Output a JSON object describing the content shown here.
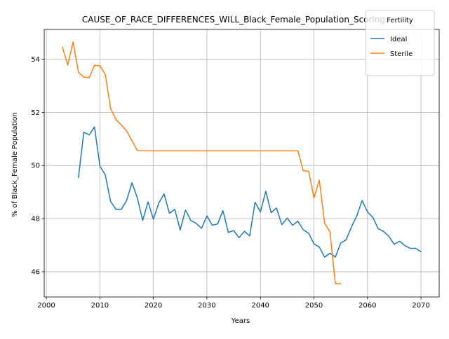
{
  "chart_data": {
    "type": "line",
    "title": "CAUSE_OF_RACE_DIFFERENCES_WILL_Black_Female_Population_Scoring:",
    "xlabel": "Years",
    "ylabel": "% of Black_Female Population",
    "xlim": [
      1999.6,
      2073.4
    ],
    "ylim": [
      45.05,
      55.12
    ],
    "xticks": [
      2000,
      2010,
      2020,
      2030,
      2040,
      2050,
      2060,
      2070
    ],
    "yticks": [
      46,
      48,
      50,
      52,
      54
    ],
    "grid": true,
    "legend": {
      "title": "Fertility",
      "position": "top-right"
    },
    "series": [
      {
        "name": "Ideal",
        "color": "#1f77b4",
        "points": [
          [
            2006,
            49.55
          ],
          [
            2007,
            51.25
          ],
          [
            2008,
            51.15
          ],
          [
            2009,
            51.45
          ],
          [
            2010,
            49.98
          ],
          [
            2011,
            49.65
          ],
          [
            2012,
            48.65
          ],
          [
            2013,
            48.35
          ],
          [
            2014,
            48.35
          ],
          [
            2015,
            48.68
          ],
          [
            2016,
            49.35
          ],
          [
            2017,
            48.78
          ],
          [
            2018,
            47.93
          ],
          [
            2019,
            48.63
          ],
          [
            2020,
            47.98
          ],
          [
            2021,
            48.58
          ],
          [
            2022,
            48.93
          ],
          [
            2023,
            48.2
          ],
          [
            2024,
            48.35
          ],
          [
            2025,
            47.57
          ],
          [
            2026,
            48.32
          ],
          [
            2027,
            47.93
          ],
          [
            2028,
            47.82
          ],
          [
            2029,
            47.63
          ],
          [
            2030,
            48.1
          ],
          [
            2031,
            47.75
          ],
          [
            2032,
            47.8
          ],
          [
            2033,
            48.3
          ],
          [
            2034,
            47.48
          ],
          [
            2035,
            47.55
          ],
          [
            2036,
            47.28
          ],
          [
            2037,
            47.52
          ],
          [
            2038,
            47.35
          ],
          [
            2039,
            48.62
          ],
          [
            2040,
            48.25
          ],
          [
            2041,
            49.03
          ],
          [
            2042,
            48.22
          ],
          [
            2043,
            48.4
          ],
          [
            2044,
            47.77
          ],
          [
            2045,
            48.02
          ],
          [
            2046,
            47.75
          ],
          [
            2047,
            47.9
          ],
          [
            2048,
            47.58
          ],
          [
            2049,
            47.45
          ],
          [
            2050,
            47.05
          ],
          [
            2051,
            46.93
          ],
          [
            2052,
            46.55
          ],
          [
            2053,
            46.7
          ],
          [
            2054,
            46.55
          ],
          [
            2055,
            47.08
          ],
          [
            2056,
            47.2
          ],
          [
            2057,
            47.68
          ],
          [
            2058,
            48.1
          ],
          [
            2059,
            48.68
          ],
          [
            2060,
            48.25
          ],
          [
            2061,
            48.05
          ],
          [
            2062,
            47.62
          ],
          [
            2063,
            47.52
          ],
          [
            2064,
            47.33
          ],
          [
            2065,
            47.03
          ],
          [
            2066,
            47.15
          ],
          [
            2067,
            46.98
          ],
          [
            2068,
            46.88
          ],
          [
            2069,
            46.88
          ],
          [
            2070,
            46.75
          ]
        ]
      },
      {
        "name": "Sterile",
        "color": "#ff7f0e",
        "points": [
          [
            2003,
            54.45
          ],
          [
            2004,
            53.78
          ],
          [
            2005,
            54.65
          ],
          [
            2006,
            53.5
          ],
          [
            2007,
            53.33
          ],
          [
            2008,
            53.3
          ],
          [
            2009,
            53.77
          ],
          [
            2010,
            53.75
          ],
          [
            2011,
            53.43
          ],
          [
            2012,
            52.15
          ],
          [
            2013,
            51.73
          ],
          [
            2014,
            51.52
          ],
          [
            2015,
            51.3
          ],
          [
            2016,
            50.93
          ],
          [
            2017,
            50.56
          ],
          [
            2018,
            50.55
          ],
          [
            2019,
            50.55
          ],
          [
            2020,
            50.55
          ],
          [
            2021,
            50.55
          ],
          [
            2022,
            50.55
          ],
          [
            2023,
            50.55
          ],
          [
            2024,
            50.55
          ],
          [
            2025,
            50.55
          ],
          [
            2026,
            50.55
          ],
          [
            2027,
            50.55
          ],
          [
            2028,
            50.55
          ],
          [
            2029,
            50.55
          ],
          [
            2030,
            50.55
          ],
          [
            2031,
            50.55
          ],
          [
            2032,
            50.55
          ],
          [
            2033,
            50.55
          ],
          [
            2034,
            50.55
          ],
          [
            2035,
            50.55
          ],
          [
            2036,
            50.55
          ],
          [
            2037,
            50.55
          ],
          [
            2038,
            50.55
          ],
          [
            2039,
            50.55
          ],
          [
            2040,
            50.55
          ],
          [
            2041,
            50.55
          ],
          [
            2042,
            50.55
          ],
          [
            2043,
            50.55
          ],
          [
            2044,
            50.55
          ],
          [
            2045,
            50.55
          ],
          [
            2046,
            50.55
          ],
          [
            2047,
            50.55
          ],
          [
            2048,
            49.8
          ],
          [
            2049,
            49.78
          ],
          [
            2050,
            48.78
          ],
          [
            2051,
            49.45
          ],
          [
            2052,
            47.82
          ],
          [
            2053,
            47.5
          ],
          [
            2054,
            45.55
          ],
          [
            2055,
            45.55
          ]
        ]
      }
    ]
  }
}
